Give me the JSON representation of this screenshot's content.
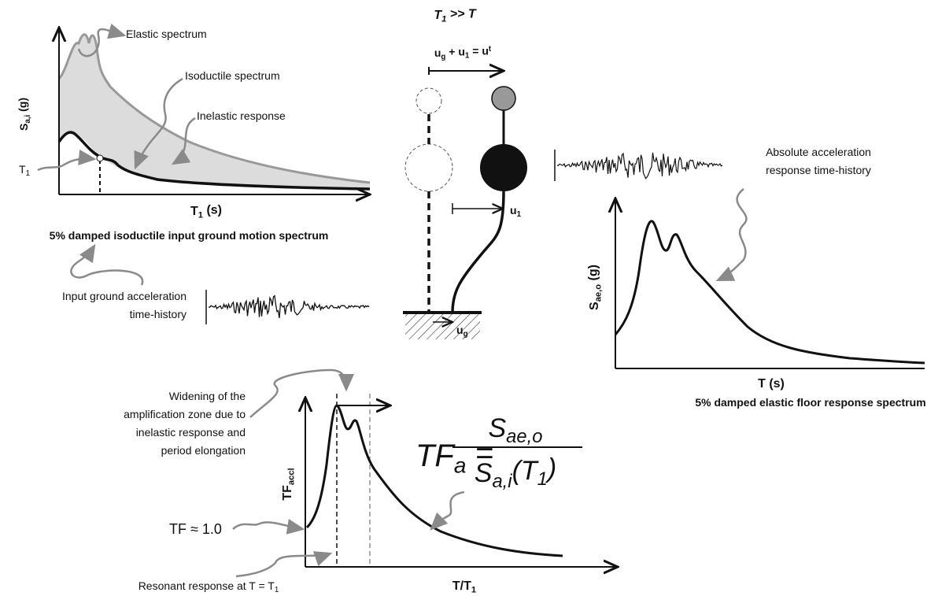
{
  "spectrum_panel": {
    "labels": {
      "elastic": "Elastic spectrum",
      "isoductile": "Isoductile spectrum",
      "inelastic": "Inelastic response"
    },
    "y_label": [
      {
        "text": "S",
        "sub": "a,i"
      },
      {
        "text": " (g)"
      }
    ],
    "t1_marker": [
      {
        "text": "T",
        "sub": "1"
      }
    ],
    "x_label": [
      {
        "text": "T",
        "sub": "1"
      },
      {
        "text": " (s)"
      }
    ],
    "caption": "5% damped isoductile input ground motion spectrum",
    "ground_motion_label": [
      "Input ground acceleration",
      "time-history"
    ]
  },
  "oscillator": {
    "title": [
      {
        "text": "T",
        "sub": "1"
      },
      {
        "text": " >> T"
      }
    ],
    "displacement_equation": [
      {
        "text": "u",
        "sub": "g"
      },
      {
        "text": " + u",
        "sub": "1"
      },
      {
        "text": " = u",
        "sup": "t"
      }
    ],
    "relative_displacement": [
      {
        "text": "u",
        "sub": "1"
      }
    ],
    "ground_displacement": [
      {
        "text": "u",
        "sub": "g"
      }
    ]
  },
  "floor_panel": {
    "response_label": [
      "Absolute acceleration",
      "response time-history"
    ],
    "y_label": [
      {
        "text": "S",
        "sub": "ae,o"
      },
      {
        "text": " (g)"
      }
    ],
    "x_label": "T (s)",
    "caption": "5% damped elastic floor response spectrum"
  },
  "transfer_panel": {
    "widening_note": [
      "Widening of the",
      "amplification zone due to",
      "inelastic response and",
      "period elongation"
    ],
    "y_label": [
      {
        "text": "TF",
        "sub": "accl"
      }
    ],
    "unity_label": "TF ≈ 1.0",
    "resonance_label": [
      {
        "text": "Resonant response at T = T",
        "sub": "1"
      }
    ],
    "x_label": [
      {
        "text": "T/T",
        "sub": "1"
      }
    ],
    "formula": {
      "lhs": [
        {
          "text": "TF",
          "sub": "a"
        },
        {
          "text": " ="
        }
      ],
      "numerator": [
        {
          "text": "S",
          "sub": "ae,o"
        }
      ],
      "denominator": [
        {
          "text": "S",
          "sub": "a,i"
        },
        {
          "text": "(T",
          "sub": "1"
        },
        {
          "text": ")"
        }
      ]
    }
  }
}
